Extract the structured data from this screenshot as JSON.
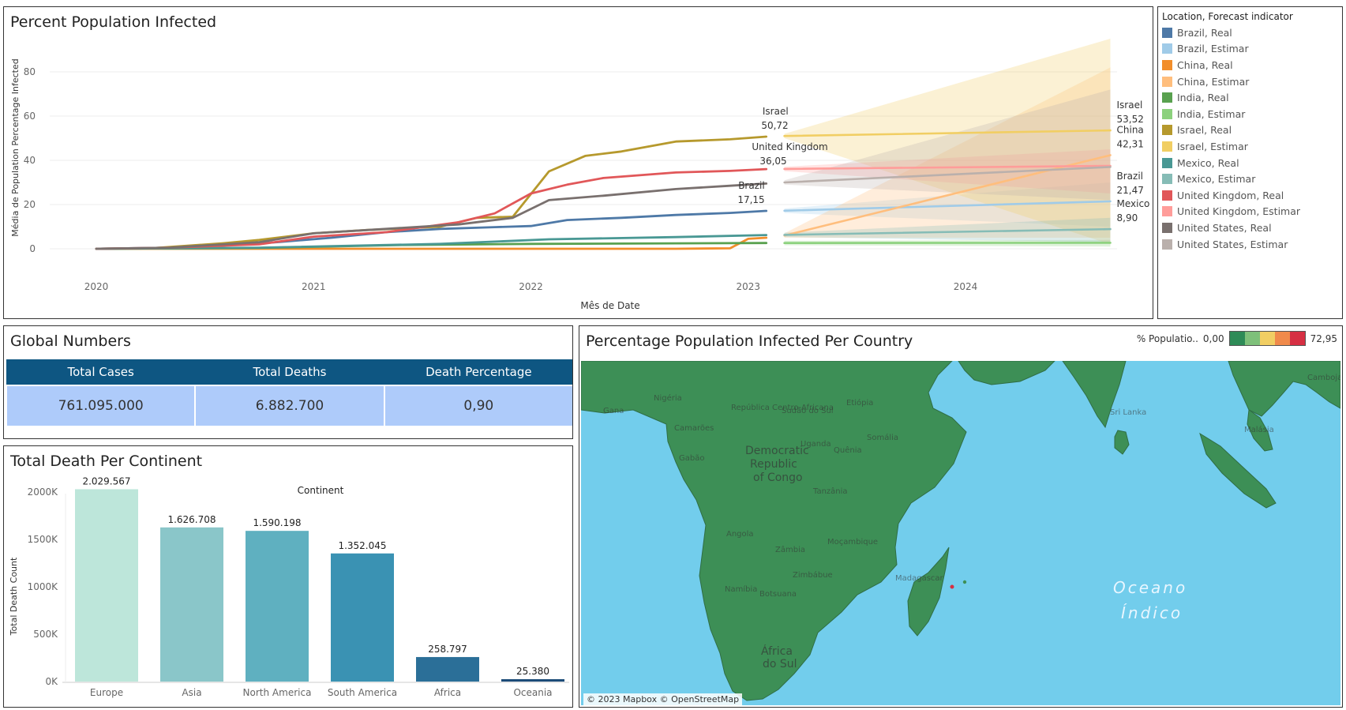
{
  "line_panel": {
    "title": "Percent Population Infected",
    "xlabel": "Mês de Date",
    "ylabel": "Média de Population Percentage Infected"
  },
  "legend": {
    "title": "Location, Forecast indicator",
    "items": [
      {
        "label": "Brazil, Real",
        "color": "#4e79a7"
      },
      {
        "label": "Brazil, Estimar",
        "color": "#a0cbe8"
      },
      {
        "label": "China, Real",
        "color": "#f28e2b"
      },
      {
        "label": "China, Estimar",
        "color": "#ffbe7d"
      },
      {
        "label": "India, Real",
        "color": "#59a14f"
      },
      {
        "label": "India, Estimar",
        "color": "#8cd17d"
      },
      {
        "label": "Israel, Real",
        "color": "#b6992d"
      },
      {
        "label": "Israel, Estimar",
        "color": "#f1ce63"
      },
      {
        "label": "Mexico, Real",
        "color": "#499894"
      },
      {
        "label": "Mexico, Estimar",
        "color": "#86bcb6"
      },
      {
        "label": "United Kingdom, Real",
        "color": "#e15759"
      },
      {
        "label": "United Kingdom, Estimar",
        "color": "#ff9d9a"
      },
      {
        "label": "United States, Real",
        "color": "#79706e"
      },
      {
        "label": "United States, Estimar",
        "color": "#bab0ac"
      }
    ]
  },
  "global_numbers": {
    "title": "Global Numbers",
    "headers": [
      "Total Cases",
      "Total Deaths",
      "Death Percentage"
    ],
    "values": [
      "761.095.000",
      "6.882.700",
      "0,90"
    ]
  },
  "bar_panel": {
    "title": "Total Death Per Continent"
  },
  "map_panel": {
    "title": "Percentage Population Infected Per Country",
    "legend_label": "% Populatio..",
    "legend_min": "0,00",
    "legend_max": "72,95",
    "legend_colors": [
      "#2e8b57",
      "#7ec07a",
      "#f1ce63",
      "#f08a4b",
      "#d62f43"
    ],
    "attribution": "© 2023 Mapbox © OpenStreetMap",
    "ocean_label_1": "Oceano",
    "ocean_label_2": "Índico",
    "labels": [
      "Nigéria",
      "República Centro-Africana",
      "Sudão do Sul",
      "Etiópia",
      "Gana",
      "Camarões",
      "Somália",
      "Gabão",
      "Uganda",
      "Quênia",
      "Democratic",
      "Republic",
      "of Congo",
      "Tanzânia",
      "Angola",
      "Moçambique",
      "Zâmbia",
      "Zimbábue",
      "Namíbia",
      "Botsuana",
      "Madagascar",
      "África",
      "do Sul",
      "Sri Lanka",
      "Malásia",
      "Camboja"
    ]
  },
  "chart_data": [
    {
      "type": "line",
      "title": "Percent Population Infected",
      "xlabel": "Mês de Date",
      "ylabel": "Média de Population Percentage Infected",
      "xlim": [
        "2020-01",
        "2024-09"
      ],
      "ylim": [
        0,
        95
      ],
      "x_ticks": [
        "2020",
        "2021",
        "2022",
        "2023",
        "2024"
      ],
      "y_ticks": [
        0,
        20,
        40,
        60,
        80
      ],
      "grid": true,
      "series": [
        {
          "name": "Brazil, Real",
          "color": "#4e79a7",
          "forecast": false,
          "x": [
            "2020-01",
            "2020-05",
            "2020-08",
            "2020-11",
            "2021-02",
            "2021-05",
            "2021-08",
            "2021-11",
            "2022-01",
            "2022-03",
            "2022-06",
            "2022-09",
            "2022-12",
            "2023-02"
          ],
          "y": [
            0,
            0.5,
            1.5,
            3,
            5,
            7.5,
            9,
            9.8,
            10.3,
            13,
            14,
            15.3,
            16.2,
            17.15
          ]
        },
        {
          "name": "Brazil, Estimar",
          "color": "#a0cbe8",
          "forecast": true,
          "x": [
            "2023-03",
            "2024-09"
          ],
          "y": [
            17.2,
            21.47
          ],
          "band": [
            10,
            30
          ]
        },
        {
          "name": "China, Real",
          "color": "#f28e2b",
          "forecast": false,
          "x": [
            "2020-01",
            "2022-09",
            "2022-12",
            "2023-01",
            "2023-02"
          ],
          "y": [
            0,
            0,
            0.2,
            4.5,
            5
          ]
        },
        {
          "name": "China, Estimar",
          "color": "#ffbe7d",
          "forecast": true,
          "x": [
            "2023-03",
            "2024-09"
          ],
          "y": [
            6,
            42.31
          ],
          "band": [
            5,
            82
          ]
        },
        {
          "name": "India, Real",
          "color": "#59a14f",
          "forecast": false,
          "x": [
            "2020-01",
            "2020-10",
            "2021-06",
            "2022-01",
            "2023-02"
          ],
          "y": [
            0,
            0.4,
            1.7,
            2.2,
            2.6
          ]
        },
        {
          "name": "India, Estimar",
          "color": "#8cd17d",
          "forecast": true,
          "x": [
            "2023-03",
            "2024-09"
          ],
          "y": [
            2.6,
            2.7
          ],
          "band": [
            1,
            4
          ]
        },
        {
          "name": "Israel, Real",
          "color": "#b6992d",
          "forecast": false,
          "x": [
            "2020-01",
            "2020-04",
            "2020-08",
            "2020-10",
            "2021-01",
            "2021-04",
            "2021-08",
            "2021-10",
            "2021-12",
            "2022-02",
            "2022-04",
            "2022-06",
            "2022-09",
            "2022-12",
            "2023-02"
          ],
          "y": [
            0,
            0.2,
            2.5,
            4,
            7,
            8.5,
            10,
            14,
            14.5,
            35,
            42,
            44,
            48.5,
            49.5,
            50.72
          ]
        },
        {
          "name": "Israel, Estimar",
          "color": "#f1ce63",
          "forecast": true,
          "x": [
            "2023-03",
            "2024-09"
          ],
          "y": [
            51,
            53.52
          ],
          "band": [
            2,
            95
          ]
        },
        {
          "name": "Mexico, Real",
          "color": "#499894",
          "forecast": false,
          "x": [
            "2020-01",
            "2020-10",
            "2021-08",
            "2022-02",
            "2022-09",
            "2023-02"
          ],
          "y": [
            0,
            0.5,
            2.2,
            4.3,
            5.3,
            6.2
          ]
        },
        {
          "name": "Mexico, Estimar",
          "color": "#86bcb6",
          "forecast": true,
          "x": [
            "2023-03",
            "2024-09"
          ],
          "y": [
            6.3,
            8.9
          ],
          "band": [
            3,
            14
          ]
        },
        {
          "name": "United Kingdom, Real",
          "color": "#e15759",
          "forecast": false,
          "x": [
            "2020-01",
            "2020-05",
            "2020-10",
            "2021-01",
            "2021-05",
            "2021-09",
            "2021-11",
            "2022-01",
            "2022-03",
            "2022-05",
            "2022-09",
            "2022-12",
            "2023-02"
          ],
          "y": [
            0,
            0.5,
            2,
            5.5,
            7.5,
            12,
            16,
            25,
            29,
            32,
            34.5,
            35.2,
            36.05
          ]
        },
        {
          "name": "United Kingdom, Estimar",
          "color": "#ff9d9a",
          "forecast": true,
          "x": [
            "2023-03",
            "2024-09"
          ],
          "y": [
            36.1,
            37.5
          ],
          "band": [
            25,
            45
          ]
        },
        {
          "name": "United States, Real",
          "color": "#79706e",
          "forecast": false,
          "x": [
            "2020-01",
            "2020-05",
            "2020-10",
            "2021-01",
            "2021-05",
            "2021-09",
            "2021-12",
            "2022-02",
            "2022-05",
            "2022-09",
            "2022-12",
            "2023-02"
          ],
          "y": [
            0,
            0.5,
            3,
            7,
            9,
            11,
            14,
            22,
            24,
            27,
            28.5,
            29.5
          ]
        },
        {
          "name": "United States, Estimar",
          "color": "#bab0ac",
          "forecast": true,
          "x": [
            "2023-03",
            "2024-09"
          ],
          "y": [
            30,
            37
          ],
          "band": [
            22,
            72
          ]
        }
      ],
      "annotations": [
        {
          "country": "Israel",
          "value": "50,72",
          "x": "2023-02",
          "y": 50.72
        },
        {
          "country": "United Kingdom",
          "value": "36,05",
          "x": "2023-02",
          "y": 36.05
        },
        {
          "country": "Brazil",
          "value": "17,15",
          "x": "2023-02",
          "y": 17.15
        },
        {
          "country": "Israel",
          "value": "53,52",
          "x": "2024-09",
          "y": 53.52
        },
        {
          "country": "China",
          "value": "42,31",
          "x": "2024-09",
          "y": 42.31
        },
        {
          "country": "Brazil",
          "value": "21,47",
          "x": "2024-09",
          "y": 21.47
        },
        {
          "country": "Mexico",
          "value": "8,90",
          "x": "2024-09",
          "y": 8.9
        }
      ]
    },
    {
      "type": "bar",
      "title": "Total Death Per Continent",
      "legend_title": "Continent",
      "xlabel": "",
      "ylabel": "Total Death Count",
      "categories": [
        "Europe",
        "Asia",
        "North America",
        "South America",
        "Africa",
        "Oceania"
      ],
      "values": [
        2029567,
        1626708,
        1590198,
        1352045,
        258797,
        25380
      ],
      "value_labels": [
        "2.029.567",
        "1.626.708",
        "1.590.198",
        "1.352.045",
        "258.797",
        "25.380"
      ],
      "colors": [
        "#bde6da",
        "#8ac6c9",
        "#5fb0c0",
        "#3a92b3",
        "#2b6f98",
        "#1c4c78"
      ],
      "y_ticks": [
        0,
        500000,
        1000000,
        1500000,
        2000000
      ],
      "y_tick_labels": [
        "0K",
        "500K",
        "1000K",
        "1500K",
        "2000K"
      ],
      "ylim": [
        0,
        2200000
      ]
    }
  ]
}
